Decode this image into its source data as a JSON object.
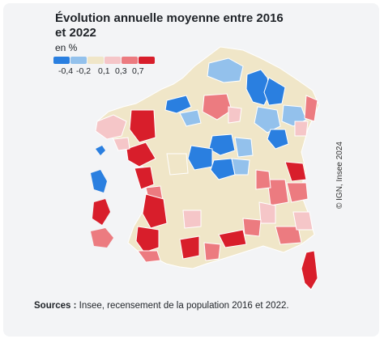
{
  "title_line1": "Évolution annuelle moyenne entre 2016",
  "title_line2": "et 2022",
  "unit": "en %",
  "legend": {
    "colors": [
      "#2a7fe0",
      "#93c1ec",
      "#f0e6c8",
      "#f5c6c8",
      "#ec7b80",
      "#d81e2b"
    ],
    "labels": [
      "-0,4",
      "-0,2",
      "0,1",
      "0,3",
      "0,7"
    ]
  },
  "credit": "© IGN, Insee 2024",
  "sources_label": "Sources :",
  "sources_text": "Insee, recensement de la population 2016 et 2022."
}
